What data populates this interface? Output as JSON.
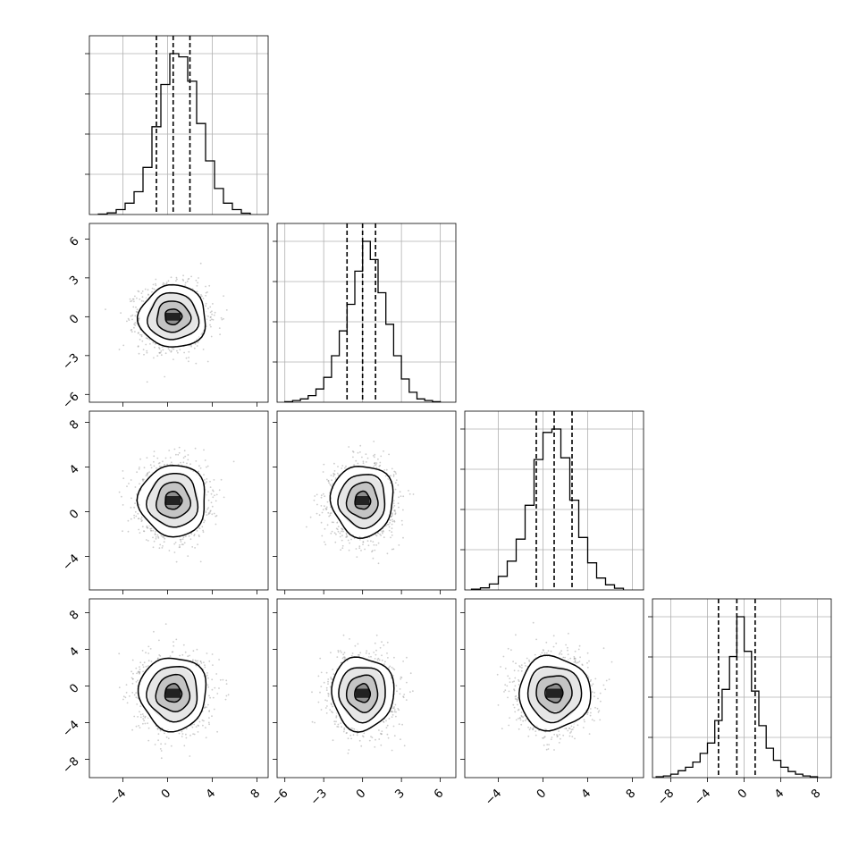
{
  "chart_data": {
    "type": "corner",
    "variables": [
      {
        "mean": 0.5,
        "sd": 1.5,
        "xlim": [
          -7,
          9
        ],
        "xticks": [
          -4,
          0,
          4,
          8
        ],
        "xticklabels": [
          "−4",
          "0",
          "4",
          "8"
        ],
        "yticks": [],
        "yticklabels": [],
        "quantiles": [
          -1.0,
          0.5,
          2.0
        ]
      },
      {
        "mean": 0.0,
        "sd": 1.2,
        "xlim": [
          -6.6,
          7.2
        ],
        "xticks": [
          -6,
          -3,
          0,
          3,
          6
        ],
        "xticklabels": [
          "−6",
          "−3",
          "0",
          "3",
          "6"
        ],
        "yticks": [
          -6,
          -3,
          0,
          3,
          6
        ],
        "yticklabels": [
          "−6",
          "−3",
          "0",
          "3",
          "6"
        ],
        "quantiles": [
          -1.2,
          0.0,
          1.0
        ]
      },
      {
        "mean": 1.0,
        "sd": 1.6,
        "xlim": [
          -7,
          9
        ],
        "xticks": [
          -4,
          0,
          4,
          8
        ],
        "xticklabels": [
          "−4",
          "0",
          "4",
          "8"
        ],
        "yticks": [
          -4,
          0,
          4,
          8
        ],
        "yticklabels": [
          "−4",
          "0",
          "4",
          "8"
        ],
        "quantiles": [
          -0.6,
          1.0,
          2.6
        ]
      },
      {
        "mean": -0.8,
        "sd": 2.0,
        "xlim": [
          -10,
          9.5
        ],
        "xticks": [
          -8,
          -4,
          0,
          4,
          8
        ],
        "xticklabels": [
          "−8",
          "−4",
          "0",
          "4",
          "8"
        ],
        "yticks": [
          -8,
          -4,
          0,
          4,
          8
        ],
        "yticklabels": [
          "−8",
          "−4",
          "0",
          "4",
          "8"
        ],
        "quantiles": [
          -2.8,
          -0.8,
          1.2
        ]
      }
    ],
    "histograms": [
      {
        "bins": [
          -6.2,
          -5.4,
          -4.6,
          -3.8,
          -3.0,
          -2.2,
          -1.4,
          -0.6,
          0.2,
          1.0,
          1.8,
          2.6,
          3.4,
          4.2,
          5.0,
          5.8,
          6.6,
          7.4
        ],
        "counts": [
          0.003,
          0.01,
          0.03,
          0.07,
          0.14,
          0.29,
          0.54,
          0.8,
          0.99,
          0.97,
          0.82,
          0.56,
          0.33,
          0.16,
          0.07,
          0.03,
          0.008
        ]
      },
      {
        "bins": [
          -6.0,
          -5.4,
          -4.8,
          -4.2,
          -3.6,
          -3.0,
          -2.4,
          -1.8,
          -1.2,
          -0.6,
          0.0,
          0.6,
          1.2,
          1.8,
          2.4,
          3.0,
          3.6,
          4.2,
          4.8,
          5.4,
          6.0
        ],
        "counts": [
          0.003,
          0.01,
          0.02,
          0.04,
          0.08,
          0.15,
          0.28,
          0.43,
          0.59,
          0.79,
          0.97,
          0.86,
          0.66,
          0.47,
          0.28,
          0.14,
          0.06,
          0.02,
          0.01,
          0.003
        ]
      },
      {
        "bins": [
          -6.4,
          -5.6,
          -4.8,
          -4.0,
          -3.2,
          -2.4,
          -1.6,
          -0.8,
          0.0,
          0.8,
          1.6,
          2.4,
          3.2,
          4.0,
          4.8,
          5.6,
          6.4,
          7.2
        ],
        "counts": [
          0.004,
          0.012,
          0.035,
          0.08,
          0.17,
          0.3,
          0.5,
          0.77,
          0.93,
          0.95,
          0.78,
          0.53,
          0.31,
          0.16,
          0.07,
          0.03,
          0.01
        ]
      },
      {
        "bins": [
          -9.6,
          -8.8,
          -8.0,
          -7.2,
          -6.4,
          -5.6,
          -4.8,
          -4.0,
          -3.2,
          -2.4,
          -1.6,
          -0.8,
          0.0,
          0.8,
          1.6,
          2.4,
          3.2,
          4.0,
          4.8,
          5.6,
          6.4,
          7.2,
          8.0
        ],
        "counts": [
          0.005,
          0.01,
          0.02,
          0.04,
          0.06,
          0.09,
          0.14,
          0.2,
          0.33,
          0.51,
          0.7,
          0.93,
          0.73,
          0.5,
          0.3,
          0.17,
          0.1,
          0.06,
          0.035,
          0.02,
          0.01,
          0.005
        ]
      }
    ],
    "scatter_points_per_panel": 1600,
    "contour_levels_sigma": [
      0.5,
      1.0,
      1.5,
      2.0
    ]
  }
}
